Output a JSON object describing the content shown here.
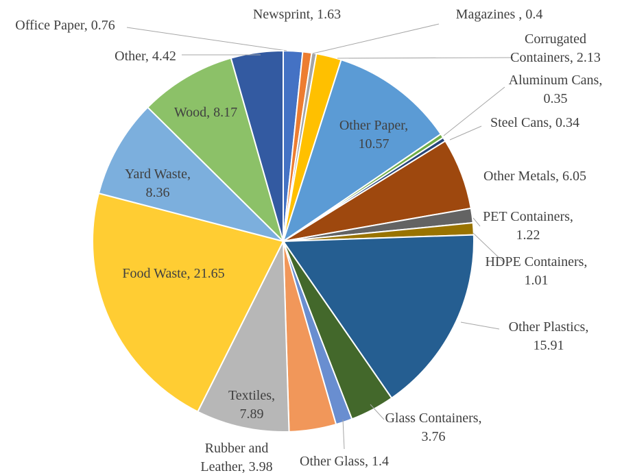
{
  "chart_data": {
    "type": "pie",
    "categories": [
      "Newsprint,",
      "Office Paper,",
      "Magazines ,",
      "Corrugated Containers,",
      "Other Paper,",
      "Aluminum Cans,",
      "Steel Cans,",
      "Other Metals,",
      "PET Containers,",
      "HDPE Containers,",
      "Other Plastics,",
      "Glass Containers,",
      "Other Glass,",
      "Rubber and Leather,",
      "Textiles,",
      "Food Waste,",
      "Yard Waste,",
      "Wood,",
      "Other,"
    ],
    "values": [
      1.63,
      0.76,
      0.4,
      2.13,
      10.57,
      0.35,
      0.34,
      6.05,
      1.22,
      1.01,
      15.91,
      3.76,
      1.4,
      3.98,
      7.89,
      21.65,
      8.36,
      8.17,
      4.42
    ],
    "colors": [
      "#4472c4",
      "#ed7d31",
      "#a5a5a5",
      "#ffc000",
      "#5b9bd5",
      "#70ad47",
      "#264478",
      "#9e480e",
      "#636363",
      "#997300",
      "#255e91",
      "#43682b",
      "#698ed0",
      "#f1975a",
      "#b7b7b7",
      "#ffcd33",
      "#7cafdd",
      "#8cc168",
      "#335aa1"
    ]
  }
}
